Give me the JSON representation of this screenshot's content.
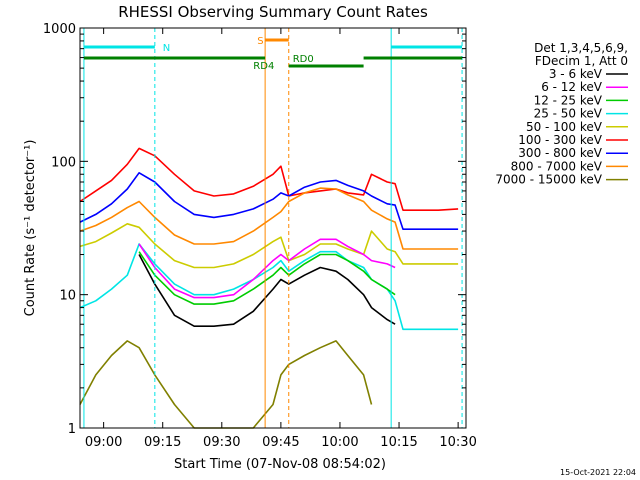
{
  "chart_data": {
    "type": "line",
    "title": "RHESSI Observing Summary Count Rates",
    "xlabel": "Start Time (07-Nov-08 08:54:02)",
    "ylabel": "Count Rate (s⁻¹ detector⁻¹)",
    "yscale": "log",
    "ylim": [
      1,
      1000
    ],
    "xlim": [
      "08:54",
      "10:32"
    ],
    "xticks": [
      "09:00",
      "09:15",
      "09:30",
      "09:45",
      "10:00",
      "10:15",
      "10:30"
    ],
    "yticks": [
      "1",
      "10",
      "100",
      "1000"
    ],
    "timestamp": "15-Oct-2021 22:04",
    "legend": {
      "placement": "right",
      "header": [
        "Det 1,3,4,5,6,9,",
        "FDecim 1, Att 0"
      ]
    },
    "flag_labels": {
      "night": "N",
      "saa": "S",
      "rd4": "RD4",
      "rd0": "RD0"
    },
    "x": [
      "08:54",
      "08:58",
      "09:02",
      "09:06",
      "09:09",
      "09:13",
      "09:18",
      "09:23",
      "09:28",
      "09:33",
      "09:38",
      "09:43",
      "09:45",
      "09:47",
      "09:51",
      "09:55",
      "09:59",
      "10:02",
      "10:06",
      "10:08",
      "10:12",
      "10:14",
      "10:16",
      "10:20",
      "10:25",
      "10:30"
    ],
    "series": [
      {
        "name": "3 - 6 keV",
        "color": "#000000",
        "values": [
          null,
          null,
          null,
          null,
          20,
          12,
          7,
          5.8,
          5.8,
          6,
          7.5,
          11,
          13,
          12,
          14,
          16,
          15,
          13,
          10,
          8,
          6.5,
          6,
          null,
          null,
          null,
          null
        ]
      },
      {
        "name": "6 - 12 keV",
        "color": "#ff00ff",
        "values": [
          null,
          null,
          null,
          null,
          24,
          16,
          11,
          9.5,
          9.5,
          10,
          13,
          18,
          20,
          18,
          22,
          26,
          26,
          23,
          20,
          18,
          17,
          16,
          null,
          null,
          null,
          null
        ]
      },
      {
        "name": "12 - 25 keV",
        "color": "#00cc00",
        "values": [
          null,
          null,
          null,
          null,
          21,
          14,
          10,
          8.5,
          8.5,
          9,
          11,
          14,
          16,
          14,
          17,
          20,
          20,
          18,
          15,
          13,
          11,
          10,
          null,
          null,
          null,
          null
        ]
      },
      {
        "name": "25 - 50 keV",
        "color": "#00e5e5",
        "values": [
          8,
          9,
          11,
          14,
          24,
          17,
          12,
          10,
          10,
          11,
          13,
          16,
          18,
          15,
          18,
          21,
          21,
          18,
          16,
          13,
          11,
          9,
          5.5,
          5.5,
          5.5,
          5.5
        ]
      },
      {
        "name": "50 - 100 keV",
        "color": "#cccc00",
        "values": [
          23,
          25,
          29,
          34,
          32,
          24,
          18,
          16,
          16,
          17,
          20,
          25,
          27,
          18,
          20,
          24,
          24,
          22,
          20,
          30,
          22,
          21,
          17,
          17,
          17,
          17
        ]
      },
      {
        "name": "100 - 300 keV",
        "color": "#ff0000",
        "values": [
          50,
          60,
          72,
          95,
          125,
          110,
          80,
          60,
          55,
          57,
          65,
          80,
          92,
          55,
          58,
          60,
          62,
          58,
          56,
          80,
          70,
          68,
          43,
          43,
          43,
          44
        ]
      },
      {
        "name": "300 - 800 keV",
        "color": "#0000ff",
        "values": [
          35,
          40,
          48,
          62,
          82,
          70,
          50,
          40,
          38,
          40,
          44,
          52,
          58,
          55,
          64,
          70,
          72,
          66,
          60,
          55,
          48,
          47,
          31,
          31,
          31,
          31
        ]
      },
      {
        "name": "800 - 7000 keV",
        "color": "#ff8800",
        "values": [
          30,
          33,
          38,
          45,
          50,
          38,
          28,
          24,
          24,
          25,
          30,
          38,
          42,
          50,
          58,
          63,
          62,
          56,
          50,
          43,
          37,
          35,
          22,
          22,
          22,
          22
        ]
      },
      {
        "name": "7000 - 15000 keV",
        "color": "#808000",
        "values": [
          1.5,
          2.5,
          3.5,
          4.5,
          4,
          2.5,
          1.5,
          1,
          1,
          1,
          1,
          1.5,
          2.5,
          3,
          3.5,
          4,
          4.5,
          3.5,
          2.5,
          1.5,
          null,
          null,
          null,
          null,
          null,
          null
        ]
      }
    ]
  }
}
